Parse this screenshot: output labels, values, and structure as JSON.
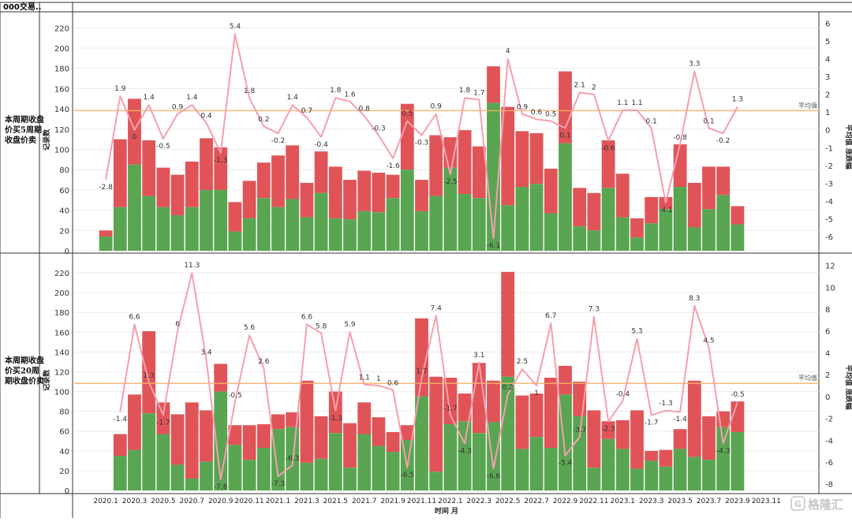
{
  "header": {
    "corner_title": "000交易.."
  },
  "xaxis": {
    "title": "时间 月",
    "tick_labels": [
      "2020.1",
      "2020.3",
      "2020.5",
      "2020.7",
      "2020.9",
      "2020.11",
      "2021.1",
      "2021.3",
      "2021.5",
      "2021.7",
      "2021.9",
      "2021.11",
      "2022.1",
      "2022.3",
      "2022.5",
      "2022.7",
      "2022.9",
      "2022.11",
      "2023.1",
      "2023.3",
      "2023.5",
      "2023.7",
      "2023.9",
      "2023.11"
    ]
  },
  "colors": {
    "green": "#5aa552",
    "red": "#e05458",
    "line": "#f4a0ae",
    "avg": "#f6b26b",
    "grid": "#ececec",
    "border": "#333333"
  },
  "watermark": "格隆汇",
  "chart_data": [
    {
      "type": "bar",
      "row_label": "本周期收盘价买5周期收盘价卖",
      "ylabel": "记录数",
      "y2label": "平均值 涨跌幅",
      "avg_label": "平均值",
      "avg_value": 1.08,
      "ylim": [
        0,
        228
      ],
      "yticks": [
        0,
        20,
        40,
        60,
        80,
        100,
        120,
        140,
        160,
        180,
        200,
        220
      ],
      "y2lim": [
        -6.8,
        6.2
      ],
      "y2ticks": [
        -6,
        -5,
        -4,
        -3,
        -2,
        -1,
        0,
        1,
        2,
        3,
        4,
        5,
        6
      ],
      "x": [
        "2020.1",
        "2020.2",
        "2020.3",
        "2020.4",
        "2020.5",
        "2020.6",
        "2020.7",
        "2020.8",
        "2020.9",
        "2020.10",
        "2020.11",
        "2020.12",
        "2021.1",
        "2021.2",
        "2021.3",
        "2021.4",
        "2021.5",
        "2021.6",
        "2021.7",
        "2021.8",
        "2021.9",
        "2021.10",
        "2021.11",
        "2021.12",
        "2022.1",
        "2022.2",
        "2022.3",
        "2022.4",
        "2022.5",
        "2022.6",
        "2022.7",
        "2022.8",
        "2022.9",
        "2022.10",
        "2022.11",
        "2022.12",
        "2023.1",
        "2023.2",
        "2023.3",
        "2023.4",
        "2023.5",
        "2023.6",
        "2023.7",
        "2023.8",
        "2023.9",
        "2023.10"
      ],
      "series": [
        {
          "name": "green",
          "values": [
            14,
            43,
            85,
            54,
            43,
            35,
            43,
            60,
            60,
            19,
            32,
            52,
            43,
            51,
            33,
            57,
            32,
            31,
            39,
            38,
            52,
            80,
            39,
            54,
            82,
            56,
            52,
            146,
            45,
            63,
            66,
            37,
            106,
            24,
            20,
            62,
            33,
            13,
            27,
            41,
            63,
            23,
            41,
            55,
            26,
            0
          ]
        },
        {
          "name": "total",
          "values": [
            20,
            110,
            150,
            109,
            82,
            75,
            88,
            111,
            102,
            48,
            69,
            87,
            94,
            104,
            67,
            98,
            83,
            70,
            79,
            77,
            75,
            145,
            70,
            114,
            112,
            119,
            103,
            182,
            142,
            118,
            116,
            81,
            177,
            62,
            57,
            109,
            76,
            32,
            53,
            53,
            105,
            67,
            83,
            83,
            44,
            0
          ]
        },
        {
          "name": "avg_change",
          "values": [
            -2.8,
            1.9,
            0.0,
            1.4,
            -0.5,
            0.9,
            1.4,
            0.4,
            -1.3,
            5.4,
            1.8,
            0.2,
            -0.2,
            1.4,
            0.7,
            -0.4,
            1.8,
            1.6,
            0.8,
            -0.3,
            -1.6,
            0.5,
            -0.3,
            0.9,
            -2.5,
            1.8,
            1.7,
            -6.1,
            4.0,
            0.9,
            0.6,
            0.5,
            0.1,
            2.1,
            2.0,
            -0.6,
            1.1,
            1.1,
            0.1,
            -4.1,
            -0.8,
            3.3,
            0.1,
            -0.2,
            1.3,
            null
          ]
        }
      ]
    },
    {
      "type": "bar",
      "row_label": "本周期收盘价买20周期收盘价卖",
      "ylabel": "记录数",
      "y2label": "平均值 涨跌幅",
      "avg_label": "平均值",
      "avg_value": 1.2,
      "ylim": [
        0,
        232
      ],
      "yticks": [
        0,
        20,
        40,
        60,
        80,
        100,
        120,
        140,
        160,
        180,
        200,
        220
      ],
      "y2lim": [
        -8.6,
        12.4
      ],
      "y2ticks": [
        -8,
        -6,
        -4,
        -2,
        0,
        2,
        4,
        6,
        8,
        10,
        12
      ],
      "x": [
        "2020.1",
        "2020.2",
        "2020.3",
        "2020.4",
        "2020.5",
        "2020.6",
        "2020.7",
        "2020.8",
        "2020.9",
        "2020.10",
        "2020.11",
        "2020.12",
        "2021.1",
        "2021.2",
        "2021.3",
        "2021.4",
        "2021.5",
        "2021.6",
        "2021.7",
        "2021.8",
        "2021.9",
        "2021.10",
        "2021.11",
        "2021.12",
        "2022.1",
        "2022.2",
        "2022.3",
        "2022.4",
        "2022.5",
        "2022.6",
        "2022.7",
        "2022.8",
        "2022.9",
        "2022.10",
        "2022.11",
        "2022.12",
        "2023.1",
        "2023.2",
        "2023.3",
        "2023.4",
        "2023.5",
        "2023.6",
        "2023.7",
        "2023.8",
        "2023.9",
        "2023.10"
      ],
      "series": [
        {
          "name": "green",
          "values": [
            0,
            35,
            41,
            78,
            57,
            26,
            12,
            29,
            100,
            46,
            31,
            43,
            62,
            64,
            28,
            32,
            58,
            23,
            57,
            45,
            39,
            51,
            95,
            19,
            67,
            70,
            58,
            69,
            115,
            42,
            54,
            43,
            97,
            75,
            23,
            52,
            42,
            22,
            30,
            24,
            42,
            34,
            31,
            64,
            59,
            0
          ]
        },
        {
          "name": "total",
          "values": [
            0,
            57,
            97,
            161,
            89,
            77,
            89,
            81,
            128,
            66,
            66,
            67,
            77,
            79,
            111,
            75,
            100,
            68,
            89,
            74,
            59,
            66,
            174,
            115,
            114,
            98,
            129,
            111,
            221,
            96,
            98,
            114,
            126,
            110,
            81,
            70,
            71,
            81,
            40,
            41,
            62,
            111,
            75,
            80,
            90,
            0
          ]
        },
        {
          "name": "avg_change",
          "values": [
            null,
            -1.4,
            6.6,
            1.3,
            -1.7,
            6.0,
            11.3,
            3.4,
            -7.6,
            -0.5,
            5.6,
            2.6,
            -7.3,
            -6.3,
            6.6,
            5.8,
            -1.3,
            5.9,
            1.1,
            1.0,
            0.6,
            -6.5,
            1.7,
            7.4,
            -1.7,
            -4.3,
            3.1,
            -6.6,
            0.2,
            2.5,
            1.0,
            6.7,
            -5.4,
            -3.7,
            7.3,
            -2.3,
            -0.4,
            5.3,
            -1.7,
            -1.3,
            -1.4,
            8.3,
            4.5,
            -4.3,
            -0.5,
            null
          ]
        }
      ]
    }
  ]
}
